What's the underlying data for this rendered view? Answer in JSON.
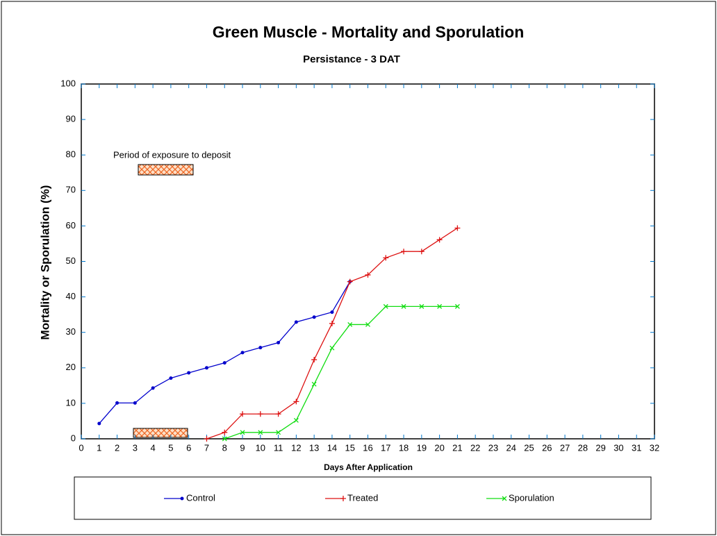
{
  "chart_data": {
    "type": "line",
    "title": "Green Muscle - Mortality and Sporulation",
    "subtitle": "Persistance - 3 DAT",
    "x_label": "Days After Application",
    "y_label": "Mortality or Sporulation  (%)",
    "annotation": "Period of exposure to deposit",
    "x": [
      1,
      2,
      3,
      4,
      5,
      6,
      7,
      8,
      9,
      10,
      11,
      12,
      13,
      14,
      15,
      16,
      17,
      18,
      19,
      20,
      21
    ],
    "series": [
      {
        "name": "Control",
        "color": "#0000cc",
        "marker": "dot",
        "values": [
          4.3,
          10.1,
          10.1,
          14.3,
          17.1,
          18.6,
          20,
          21.4,
          24.3,
          25.7,
          27.1,
          32.9,
          34.3,
          35.7,
          44.3,
          null,
          null,
          null,
          null,
          null,
          null
        ]
      },
      {
        "name": "Treated",
        "color": "#dd1111",
        "marker": "plus",
        "values": [
          null,
          null,
          null,
          null,
          null,
          null,
          0,
          1.8,
          7,
          7,
          7,
          10.5,
          22.3,
          32.5,
          44.3,
          46.2,
          51,
          52.8,
          52.8,
          56.1,
          59.4
        ]
      },
      {
        "name": "Sporulation",
        "color": "#11dd11",
        "marker": "cross",
        "values": [
          null,
          null,
          null,
          null,
          null,
          null,
          null,
          0,
          1.8,
          1.8,
          1.8,
          5.2,
          15.4,
          25.6,
          32.2,
          32.2,
          37.3,
          37.3,
          37.3,
          37.3,
          37.3
        ]
      }
    ],
    "xlim": [
      0,
      32
    ],
    "xticks": [
      0,
      1,
      2,
      3,
      4,
      5,
      6,
      7,
      8,
      9,
      10,
      11,
      12,
      13,
      14,
      15,
      16,
      17,
      18,
      19,
      20,
      21,
      22,
      23,
      24,
      25,
      26,
      27,
      28,
      29,
      30,
      31,
      32
    ],
    "ylim": [
      0,
      100
    ],
    "yticks": [
      0,
      10,
      20,
      30,
      40,
      50,
      60,
      70,
      80,
      90,
      100
    ],
    "grid": false,
    "legend": "bottom"
  }
}
